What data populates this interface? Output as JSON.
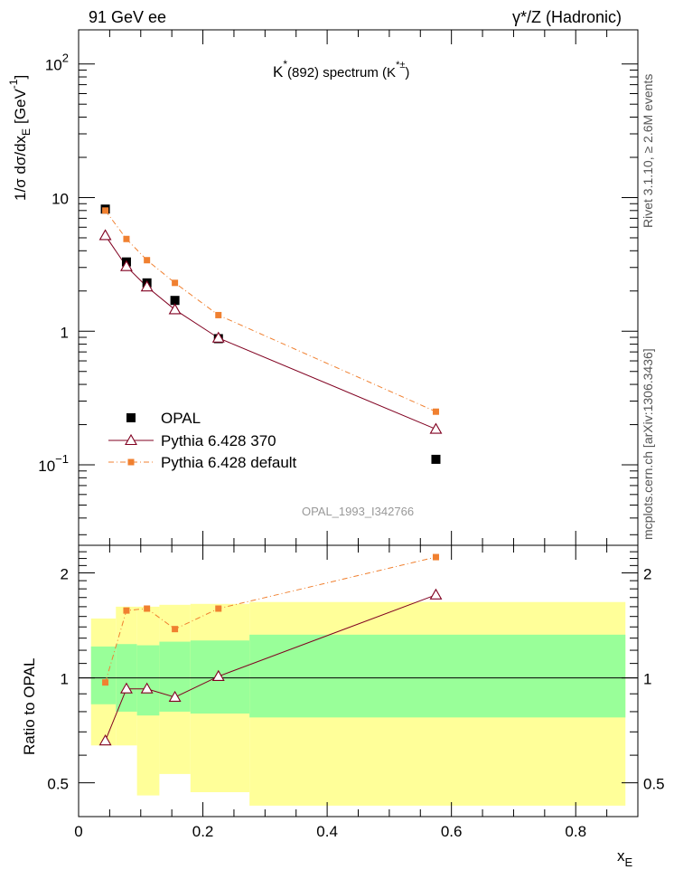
{
  "header": {
    "left": "91 GeV ee",
    "right": "γ*/Z (Hadronic)"
  },
  "side_text": {
    "top": "Rivet 3.1.10, ≥ 2.6M events",
    "bottom": "mcplots.cern.ch [arXiv:1306.3436]"
  },
  "colors": {
    "data": "#000000",
    "pythia370": "#800020",
    "pythia_default": "#f08030",
    "band_inner": "#99ff99",
    "band_outer": "#ffff99"
  },
  "chart_data": [
    {
      "type": "scatter",
      "title_main": "K",
      "title_sup": "*",
      "title_mid": "(892) spectrum (K",
      "title_sup2": "*±",
      "title_end": ")",
      "ylabel": "1/σ dσ/dx",
      "ylabel_sub": "E",
      "ylabel_unit": "[GeV",
      "ylabel_unit_sup": "-1",
      "ylabel_unit_end": "]",
      "yscale": "log",
      "ylim": [
        0.025,
        180
      ],
      "xlim": [
        0,
        0.9
      ],
      "yticks": [
        {
          "value": 0.1,
          "base": "10",
          "exp": "−1"
        },
        {
          "value": 1,
          "base": "1",
          "exp": ""
        },
        {
          "value": 10,
          "base": "10",
          "exp": ""
        },
        {
          "value": 100,
          "base": "10",
          "exp": "2"
        }
      ],
      "watermark": "OPAL_1993_I342766",
      "legend_position": "bottom-left",
      "series": [
        {
          "name": "OPAL",
          "style": "square",
          "x": [
            0.043,
            0.077,
            0.11,
            0.155,
            0.225,
            0.575
          ],
          "y": [
            8.2,
            3.3,
            2.3,
            1.7,
            0.88,
            0.11
          ]
        },
        {
          "name": "Pythia 6.428 370",
          "style": "triangle-line",
          "x": [
            0.043,
            0.077,
            0.11,
            0.155,
            0.225,
            0.575
          ],
          "y": [
            5.2,
            3.05,
            2.15,
            1.45,
            0.89,
            0.185
          ]
        },
        {
          "name": "Pythia 6.428 default",
          "style": "small-square-dashdot",
          "x": [
            0.043,
            0.077,
            0.11,
            0.155,
            0.225,
            0.575
          ],
          "y": [
            8.0,
            4.9,
            3.4,
            2.3,
            1.32,
            0.25
          ]
        }
      ]
    },
    {
      "type": "line",
      "ylabel": "Ratio to OPAL",
      "yscale": "log",
      "ylim": [
        0.4,
        2.4
      ],
      "xlim": [
        0,
        0.9
      ],
      "xlabel": "x",
      "xlabel_sub": "E",
      "xticks": [
        {
          "value": 0,
          "label": "0"
        },
        {
          "value": 0.2,
          "label": "0.2"
        },
        {
          "value": 0.4,
          "label": "0.4"
        },
        {
          "value": 0.6,
          "label": "0.6"
        },
        {
          "value": 0.8,
          "label": "0.8"
        }
      ],
      "yticks": [
        {
          "value": 0.5,
          "label": "0.5"
        },
        {
          "value": 1,
          "label": "1"
        },
        {
          "value": 2,
          "label": "2"
        }
      ],
      "bands": {
        "edges": [
          0.02,
          0.06,
          0.094,
          0.13,
          0.18,
          0.275,
          0.88
        ],
        "inner_low": [
          0.84,
          0.8,
          0.78,
          0.8,
          0.79,
          0.77
        ],
        "inner_high": [
          1.23,
          1.25,
          1.24,
          1.27,
          1.28,
          1.33
        ],
        "outer_low": [
          0.64,
          0.64,
          0.46,
          0.53,
          0.47,
          0.43
        ],
        "outer_high": [
          1.48,
          1.6,
          1.6,
          1.62,
          1.63,
          1.65
        ]
      },
      "series": [
        {
          "name": "Pythia 6.428 370",
          "x": [
            0.043,
            0.077,
            0.11,
            0.155,
            0.225,
            0.575
          ],
          "y": [
            0.66,
            0.93,
            0.93,
            0.88,
            1.01,
            1.73
          ]
        },
        {
          "name": "Pythia 6.428 default",
          "x": [
            0.043,
            0.077,
            0.11,
            0.155,
            0.225,
            0.575
          ],
          "y": [
            0.97,
            1.56,
            1.58,
            1.38,
            1.58,
            2.22
          ]
        }
      ]
    }
  ]
}
